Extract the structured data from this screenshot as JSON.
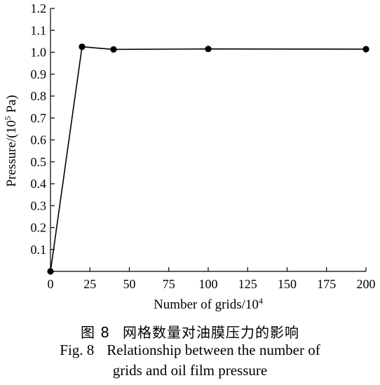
{
  "chart_data": {
    "type": "line",
    "x": [
      0,
      20,
      40,
      100,
      200
    ],
    "series": [
      {
        "values": [
          0.0,
          1.025,
          1.013,
          1.015,
          1.014
        ]
      }
    ],
    "xlabel": "Number of grids/10",
    "xlabel_sup": "4",
    "ylabel": "Pressure/(10",
    "ylabel_sup": "5",
    "ylabel_tail": " Pa)",
    "xlim": [
      0,
      200
    ],
    "ylim": [
      0,
      1.2
    ],
    "x_ticks": [
      "0",
      "25",
      "50",
      "75",
      "100",
      "125",
      "150",
      "175",
      "200"
    ],
    "y_ticks": [
      "",
      "0.1",
      "0.2",
      "0.3",
      "0.4",
      "0.5",
      "0.6",
      "0.7",
      "0.8",
      "0.9",
      "1.0",
      "1.1",
      "1.2"
    ],
    "grid": false,
    "line_color": "#000000",
    "marker": "filled-circle"
  },
  "caption": {
    "figure_cn": "图 8",
    "title_cn": "网格数量对油膜压力的影响",
    "figure_en": "Fig. 8",
    "title_en_line1": "Relationship between the number of",
    "title_en_line2": "grids and oil film pressure"
  }
}
